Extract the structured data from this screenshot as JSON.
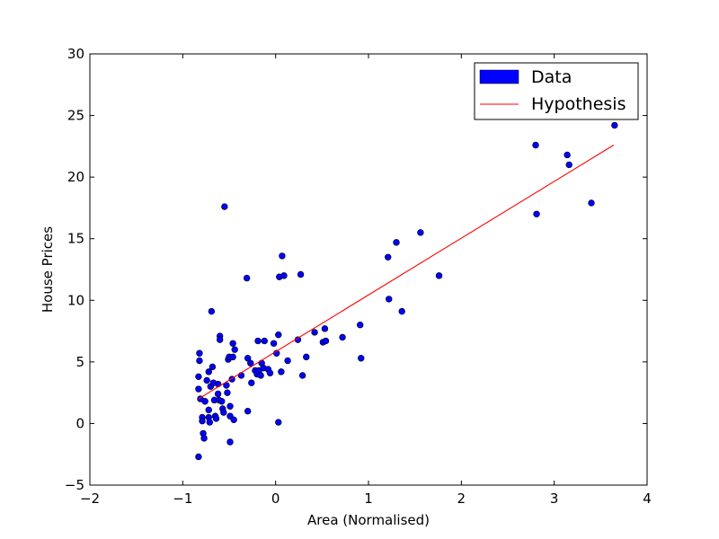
{
  "chart_data": {
    "type": "scatter",
    "title": "",
    "xlabel": "Area (Normalised)",
    "ylabel": "House Prices",
    "xlim": [
      -2,
      4
    ],
    "ylim": [
      -5,
      30
    ],
    "xticks": [
      -2,
      -1,
      0,
      1,
      2,
      3,
      4
    ],
    "yticks": [
      -5,
      0,
      5,
      10,
      15,
      20,
      25,
      30
    ],
    "xtick_labels": [
      "−2",
      "−1",
      "0",
      "1",
      "2",
      "3",
      "4"
    ],
    "ytick_labels": [
      "−5",
      "0",
      "5",
      "10",
      "15",
      "20",
      "25",
      "30"
    ],
    "grid": false,
    "legend_position": "top-right",
    "legend": [
      {
        "label": "Data",
        "type": "patch",
        "color": "#0000ff"
      },
      {
        "label": "Hypothesis",
        "type": "line",
        "color": "#ff0000"
      }
    ],
    "series": [
      {
        "name": "Data",
        "kind": "scatter",
        "color": "#0000ff",
        "points": [
          [
            -0.82,
            5.7
          ],
          [
            -0.82,
            5.1
          ],
          [
            -0.83,
            3.8
          ],
          [
            -0.83,
            2.8
          ],
          [
            -0.81,
            2.0
          ],
          [
            -0.79,
            0.5
          ],
          [
            -0.79,
            0.2
          ],
          [
            -0.78,
            -0.8
          ],
          [
            -0.77,
            -1.2
          ],
          [
            -0.83,
            -2.7
          ],
          [
            -0.76,
            1.8
          ],
          [
            -0.74,
            3.5
          ],
          [
            -0.72,
            4.2
          ],
          [
            -0.72,
            1.1
          ],
          [
            -0.72,
            0.5
          ],
          [
            -0.71,
            0.1
          ],
          [
            -0.7,
            3.0
          ],
          [
            -0.68,
            4.6
          ],
          [
            -0.67,
            3.3
          ],
          [
            -0.66,
            1.9
          ],
          [
            -0.65,
            0.6
          ],
          [
            -0.64,
            0.4
          ],
          [
            -0.69,
            9.1
          ],
          [
            -0.62,
            3.2
          ],
          [
            -0.62,
            2.4
          ],
          [
            -0.61,
            1.9
          ],
          [
            -0.6,
            7.1
          ],
          [
            -0.6,
            6.8
          ],
          [
            -0.58,
            1.8
          ],
          [
            -0.57,
            1.2
          ],
          [
            -0.56,
            0.9
          ],
          [
            -0.55,
            17.6
          ],
          [
            -0.53,
            3.1
          ],
          [
            -0.52,
            2.5
          ],
          [
            -0.51,
            5.2
          ],
          [
            -0.5,
            5.4
          ],
          [
            -0.49,
            1.4
          ],
          [
            -0.49,
            0.6
          ],
          [
            -0.49,
            -1.5
          ],
          [
            -0.47,
            3.6
          ],
          [
            -0.46,
            6.5
          ],
          [
            -0.46,
            5.4
          ],
          [
            -0.44,
            6.0
          ],
          [
            -0.45,
            0.3
          ],
          [
            -0.37,
            3.9
          ],
          [
            -0.31,
            11.8
          ],
          [
            -0.3,
            5.3
          ],
          [
            -0.3,
            1.0
          ],
          [
            -0.27,
            4.9
          ],
          [
            -0.26,
            3.3
          ],
          [
            -0.22,
            4.3
          ],
          [
            -0.2,
            4.0
          ],
          [
            -0.19,
            6.7
          ],
          [
            -0.18,
            4.3
          ],
          [
            -0.16,
            3.9
          ],
          [
            -0.15,
            4.9
          ],
          [
            -0.13,
            4.5
          ],
          [
            -0.12,
            6.7
          ],
          [
            -0.08,
            4.4
          ],
          [
            -0.06,
            4.1
          ],
          [
            -0.02,
            6.5
          ],
          [
            0.01,
            5.7
          ],
          [
            0.03,
            0.1
          ],
          [
            0.03,
            7.2
          ],
          [
            0.04,
            11.9
          ],
          [
            0.06,
            4.2
          ],
          [
            0.07,
            13.6
          ],
          [
            0.09,
            12.0
          ],
          [
            0.13,
            5.1
          ],
          [
            0.24,
            6.8
          ],
          [
            0.27,
            12.1
          ],
          [
            0.29,
            3.9
          ],
          [
            0.33,
            5.4
          ],
          [
            0.42,
            7.4
          ],
          [
            0.51,
            6.6
          ],
          [
            0.53,
            7.7
          ],
          [
            0.54,
            6.7
          ],
          [
            0.72,
            7.0
          ],
          [
            0.91,
            8.0
          ],
          [
            0.92,
            5.3
          ],
          [
            1.21,
            13.5
          ],
          [
            1.22,
            10.1
          ],
          [
            1.3,
            14.7
          ],
          [
            1.36,
            9.1
          ],
          [
            1.56,
            15.5
          ],
          [
            1.76,
            12.0
          ],
          [
            2.8,
            22.6
          ],
          [
            2.81,
            17.0
          ],
          [
            3.14,
            21.8
          ],
          [
            3.16,
            21.0
          ],
          [
            3.4,
            17.9
          ],
          [
            3.65,
            24.2
          ]
        ]
      },
      {
        "name": "Hypothesis",
        "kind": "line",
        "color": "#ff0000",
        "x": [
          -0.83,
          3.64
        ],
        "y": [
          2.0,
          22.6
        ]
      }
    ]
  }
}
